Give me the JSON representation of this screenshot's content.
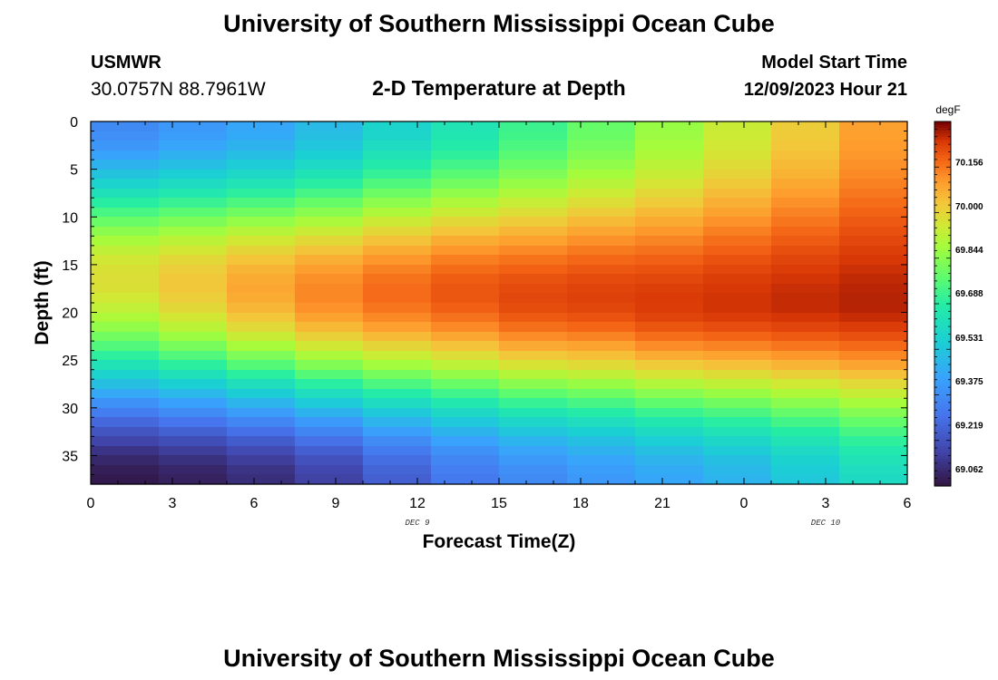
{
  "header": {
    "title": "University of Southern Mississippi Ocean Cube",
    "station_id": "USMWR",
    "station_coords": "30.0757N  88.7961W",
    "subtitle": "2-D Temperature at Depth",
    "model_start_label": "Model Start Time",
    "model_start_value": "12/09/2023 Hour 21"
  },
  "footer": {
    "title": "University of Southern Mississippi Ocean Cube"
  },
  "chart_data": {
    "type": "heatmap",
    "title": "2-D Temperature at Depth",
    "xlabel": "Forecast Time(Z)",
    "ylabel": "Depth (ft)",
    "x_tick_labels": [
      "0",
      "3",
      "6",
      "9",
      "12",
      "15",
      "18",
      "21",
      "0",
      "3",
      "6"
    ],
    "x_day_labels": [
      {
        "label": "DEC 9",
        "at_tick": 4
      },
      {
        "label": "DEC 10",
        "at_tick": 9
      }
    ],
    "y_ticks": [
      0,
      5,
      10,
      15,
      20,
      25,
      30,
      35
    ],
    "ylim": [
      0,
      38
    ],
    "colorbar": {
      "unit": "degF",
      "tick_labels": [
        "69.062",
        "69.219",
        "69.375",
        "69.531",
        "69.688",
        "69.844",
        "70.000",
        "70.156"
      ],
      "range": [
        69.0,
        70.3
      ]
    },
    "time_steps": 12,
    "depth_layers": 38,
    "value_model": {
      "surface": [
        69.32,
        69.36,
        69.4,
        69.46,
        69.54,
        69.61,
        69.69,
        69.76,
        69.84,
        69.92,
        70.0,
        70.08
      ],
      "peak_value": [
        69.96,
        70.01,
        70.07,
        70.12,
        70.16,
        70.19,
        70.21,
        70.22,
        70.23,
        70.24,
        70.25,
        70.26
      ],
      "peak_depth_ft": [
        16.5,
        17,
        17.5,
        18,
        18,
        18,
        18.5,
        18.5,
        19,
        19,
        19,
        19
      ],
      "bottom": [
        69.02,
        69.04,
        69.07,
        69.12,
        69.2,
        69.27,
        69.32,
        69.36,
        69.4,
        69.44,
        69.5,
        69.57
      ]
    }
  }
}
